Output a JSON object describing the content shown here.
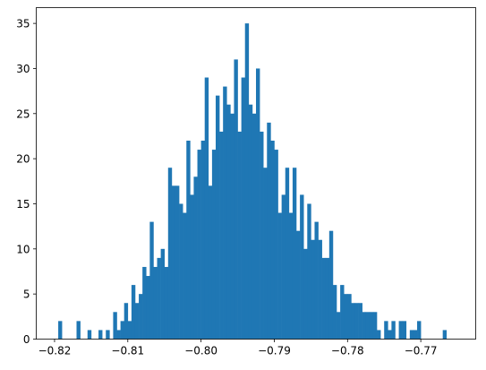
{
  "chart_data": {
    "type": "bar",
    "subtype": "histogram",
    "title": "",
    "xlabel": "",
    "ylabel": "",
    "xlim": [
      -0.8225,
      -0.7625
    ],
    "ylim": [
      0,
      36.75
    ],
    "grid": false,
    "legend": "none",
    "color": "#1f77b4",
    "bin_width": 0.0005,
    "x_start": -0.8195,
    "x_ticks": [
      -0.82,
      -0.81,
      -0.8,
      -0.79,
      -0.78,
      -0.77
    ],
    "x_tick_labels": [
      "−0.82",
      "−0.81",
      "−0.80",
      "−0.79",
      "−0.78",
      "−0.77"
    ],
    "y_ticks": [
      0,
      5,
      10,
      15,
      20,
      25,
      30,
      35
    ],
    "y_tick_labels": [
      "0",
      "5",
      "10",
      "15",
      "20",
      "25",
      "30",
      "35"
    ],
    "values": [
      2,
      0,
      0,
      0,
      0,
      2,
      0,
      0,
      1,
      0,
      0,
      1,
      0,
      1,
      0,
      3,
      1,
      2,
      4,
      2,
      6,
      4,
      5,
      8,
      7,
      13,
      8,
      9,
      10,
      8,
      19,
      17,
      17,
      15,
      14,
      22,
      16,
      18,
      21,
      22,
      29,
      17,
      21,
      27,
      23,
      28,
      26,
      25,
      31,
      23,
      29,
      35,
      26,
      25,
      30,
      23,
      19,
      24,
      22,
      21,
      14,
      16,
      19,
      14,
      19,
      12,
      16,
      10,
      15,
      11,
      13,
      11,
      9,
      9,
      12,
      6,
      3,
      6,
      5,
      5,
      4,
      4,
      4,
      3,
      3,
      3,
      3,
      1,
      0,
      2,
      1,
      2,
      0,
      2,
      2,
      0,
      1,
      1,
      2,
      0,
      0,
      0,
      0,
      0,
      0,
      1
    ]
  }
}
